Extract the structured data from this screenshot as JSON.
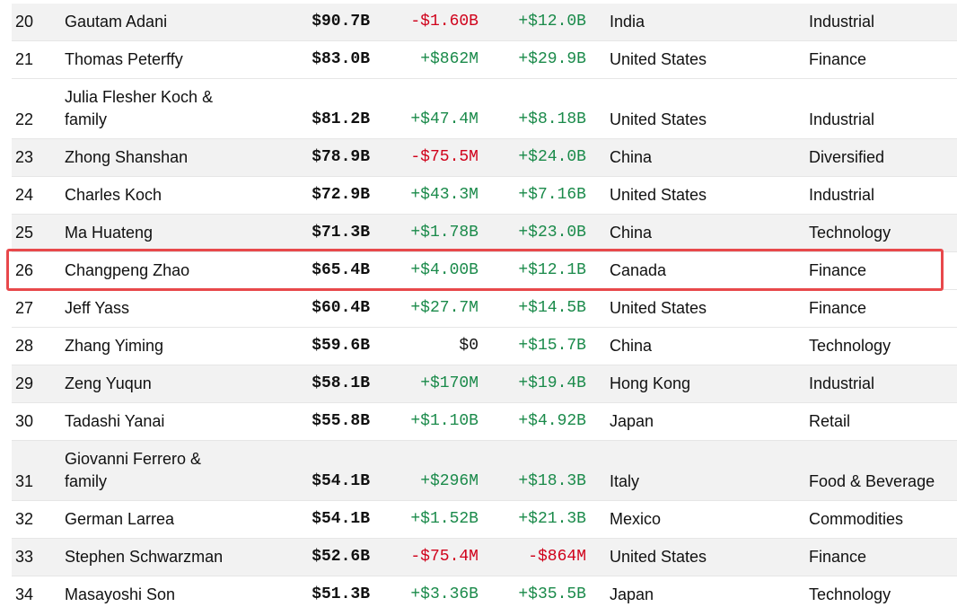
{
  "table": {
    "rows": [
      [
        "20",
        "Gautam Adani",
        "$90.7B",
        "-$1.60B",
        "+$12.0B",
        "India",
        "Industrial"
      ],
      [
        "21",
        "Thomas Peterffy",
        "$83.0B",
        "+$862M",
        "+$29.9B",
        "United States",
        "Finance"
      ],
      [
        "22",
        "Julia Flesher Koch & family",
        "$81.2B",
        "+$47.4M",
        "+$8.18B",
        "United States",
        "Industrial"
      ],
      [
        "23",
        "Zhong Shanshan",
        "$78.9B",
        "-$75.5M",
        "+$24.0B",
        "China",
        "Diversified"
      ],
      [
        "24",
        "Charles Koch",
        "$72.9B",
        "+$43.3M",
        "+$7.16B",
        "United States",
        "Industrial"
      ],
      [
        "25",
        "Ma Huateng",
        "$71.3B",
        "+$1.78B",
        "+$23.0B",
        "China",
        "Technology"
      ],
      [
        "26",
        "Changpeng Zhao",
        "$65.4B",
        "+$4.00B",
        "+$12.1B",
        "Canada",
        "Finance"
      ],
      [
        "27",
        "Jeff Yass",
        "$60.4B",
        "+$27.7M",
        "+$14.5B",
        "United States",
        "Finance"
      ],
      [
        "28",
        "Zhang Yiming",
        "$59.6B",
        "$0",
        "+$15.7B",
        "China",
        "Technology"
      ],
      [
        "29",
        "Zeng Yuqun",
        "$58.1B",
        "+$170M",
        "+$19.4B",
        "Hong Kong",
        "Industrial"
      ],
      [
        "30",
        "Tadashi Yanai",
        "$55.8B",
        "+$1.10B",
        "+$4.92B",
        "Japan",
        "Retail"
      ],
      [
        "31",
        "Giovanni Ferrero & family",
        "$54.1B",
        "+$296M",
        "+$18.3B",
        "Italy",
        "Food & Beverage"
      ],
      [
        "32",
        "German Larrea",
        "$54.1B",
        "+$1.52B",
        "+$21.3B",
        "Mexico",
        "Commodities"
      ],
      [
        "33",
        "Stephen Schwarzman",
        "$52.6B",
        "-$75.4M",
        "-$864M",
        "United States",
        "Finance"
      ],
      [
        "34",
        "Masayoshi Son",
        "$51.3B",
        "+$3.36B",
        "+$35.5B",
        "Japan",
        "Technology"
      ]
    ]
  }
}
